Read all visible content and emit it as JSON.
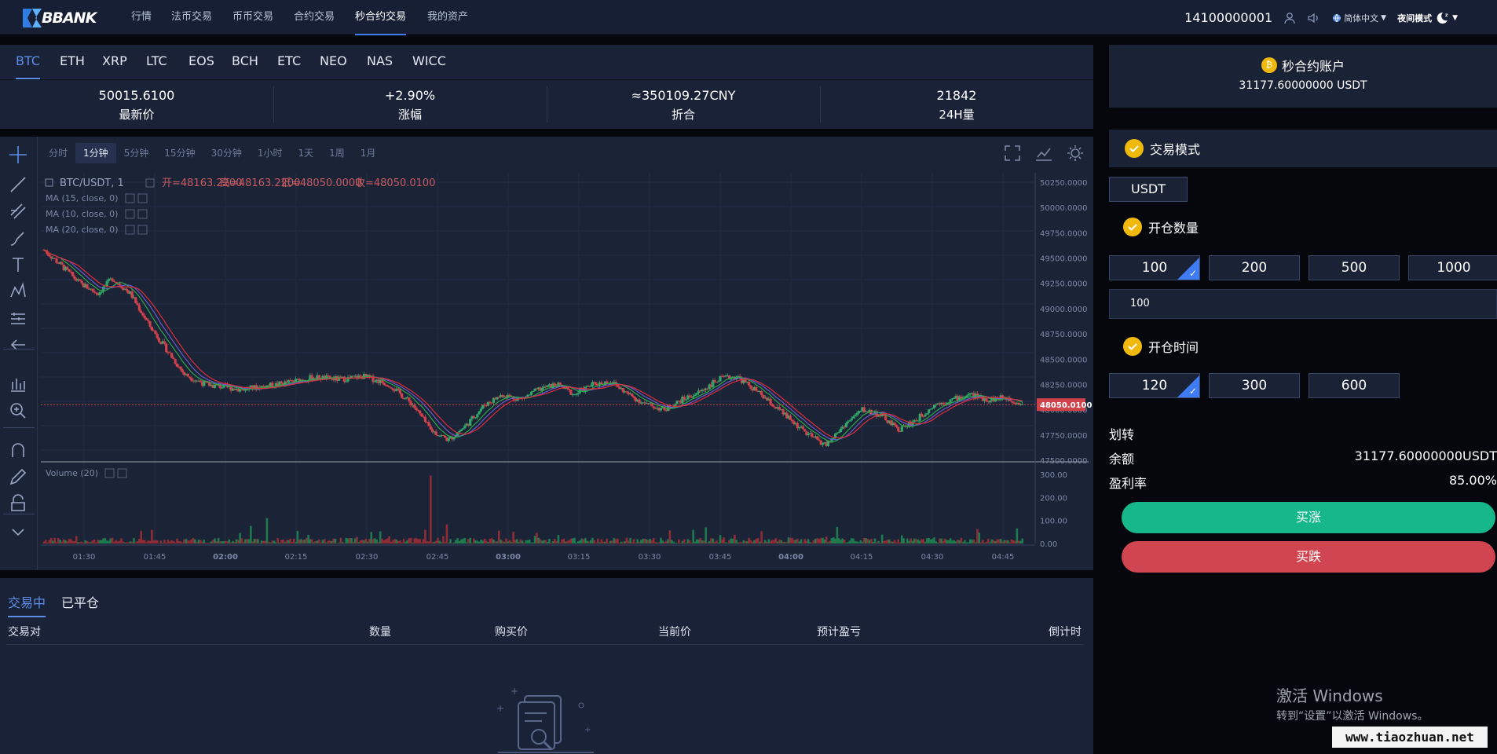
{
  "nav": {
    "logo_text": "BBANK",
    "items": [
      "行情",
      "法币交易",
      "币币交易",
      "合约交易",
      "秒合约交易",
      "我的资产"
    ],
    "active_index": 4,
    "phone": "14100000001",
    "language": "简体中文",
    "night_mode": "夜间模式"
  },
  "coins": {
    "tabs": [
      "BTC",
      "ETH",
      "XRP",
      "LTC",
      "EOS",
      "BCH",
      "ETC",
      "NEO",
      "NAS",
      "WICC"
    ],
    "active_index": 0
  },
  "stats": [
    {
      "value": "50015.6100",
      "label": "最新价"
    },
    {
      "value": "+2.90%",
      "label": "涨幅"
    },
    {
      "value": "≈350109.27CNY",
      "label": "折合"
    },
    {
      "value": "21842",
      "label": "24H量"
    }
  ],
  "chart_toolbar": {
    "timeframes": [
      "分时",
      "1分钟",
      "5分钟",
      "15分钟",
      "30分钟",
      "1小时",
      "1天",
      "1周",
      "1月"
    ],
    "active_index": 1
  },
  "chart_data": {
    "type": "candlestick",
    "symbol_label": "BTC/USDT, 1",
    "ohlc_label": {
      "open": "开=48163.2200",
      "high": "高=48163.2200",
      "low": "低=48050.0000",
      "close": "收=48050.0100"
    },
    "indicators": [
      "MA (15, close, 0)",
      "MA (10, close, 0)",
      "MA (20, close, 0)"
    ],
    "volume_label": "Volume (20)",
    "price_ticks": [
      "50250.0000",
      "50000.0000",
      "49750.0000",
      "49500.0000",
      "49250.0000",
      "49000.0000",
      "48750.0000",
      "48500.0000",
      "48250.0000",
      "48000.0000",
      "47750.0000",
      "47500.0000"
    ],
    "price_range": [
      47500,
      50250
    ],
    "last_price_label": "48050.0100",
    "volume_ticks": [
      "300.00",
      "200.00",
      "100.00",
      "0.00"
    ],
    "volume_range": [
      0,
      300
    ],
    "time_ticks": [
      "01:30",
      "01:45",
      "02:00",
      "02:15",
      "02:30",
      "02:45",
      "03:00",
      "03:15",
      "03:30",
      "03:45",
      "04:00",
      "04:15",
      "04:30",
      "04:45"
    ],
    "price_path_keypoints": [
      [
        0,
        49580
      ],
      [
        10,
        49420
      ],
      [
        20,
        49250
      ],
      [
        30,
        49150
      ],
      [
        38,
        49300
      ],
      [
        48,
        49150
      ],
      [
        58,
        48850
      ],
      [
        68,
        48600
      ],
      [
        78,
        48350
      ],
      [
        90,
        48250
      ],
      [
        110,
        48200
      ],
      [
        130,
        48250
      ],
      [
        150,
        48320
      ],
      [
        165,
        48300
      ],
      [
        178,
        48330
      ],
      [
        192,
        48250
      ],
      [
        205,
        48050
      ],
      [
        215,
        47800
      ],
      [
        225,
        47700
      ],
      [
        235,
        47850
      ],
      [
        245,
        48050
      ],
      [
        255,
        48150
      ],
      [
        265,
        48100
      ],
      [
        275,
        48200
      ],
      [
        285,
        48250
      ],
      [
        295,
        48150
      ],
      [
        305,
        48250
      ],
      [
        315,
        48280
      ],
      [
        325,
        48150
      ],
      [
        335,
        48050
      ],
      [
        345,
        48000
      ],
      [
        355,
        48100
      ],
      [
        365,
        48180
      ],
      [
        375,
        48300
      ],
      [
        385,
        48330
      ],
      [
        395,
        48200
      ],
      [
        405,
        48050
      ],
      [
        415,
        47900
      ],
      [
        425,
        47750
      ],
      [
        435,
        47650
      ],
      [
        445,
        47850
      ],
      [
        455,
        48000
      ],
      [
        465,
        47950
      ],
      [
        475,
        47800
      ],
      [
        485,
        47900
      ],
      [
        495,
        48050
      ],
      [
        505,
        48100
      ],
      [
        515,
        48150
      ],
      [
        525,
        48100
      ],
      [
        535,
        48120
      ],
      [
        545,
        48050
      ]
    ]
  },
  "orders": {
    "tabs": [
      "交易中",
      "已平仓"
    ],
    "active_index": 0,
    "headers": [
      "交易对",
      "数量",
      "购买价",
      "当前价",
      "预计盈亏",
      "倒计时"
    ]
  },
  "sidebar": {
    "account_title": "秒合约账户",
    "account_balance": "31177.60000000 USDT",
    "mode_title": "交易模式",
    "mode_value": "USDT",
    "amount_title": "开仓数量",
    "amounts": [
      "100",
      "200",
      "500",
      "1000"
    ],
    "amount_selected": 0,
    "amount_input": "100",
    "time_title": "开仓时间",
    "times": [
      "120",
      "300",
      "600"
    ],
    "time_selected": 0,
    "transfer_label": "划转",
    "balance_label": "余额",
    "balance_value": "31177.60000000USDT",
    "profit_label": "盈利率",
    "profit_value": "85.00%",
    "buy_up": "买涨",
    "buy_down": "买跌",
    "up_color": "#16b88a",
    "down_color": "#d0454f"
  },
  "overlay": {
    "watermark_title": "激活 Windows",
    "watermark_sub": "转到“设置”以激活 Windows。",
    "site": "www.tiaozhuan.net"
  }
}
